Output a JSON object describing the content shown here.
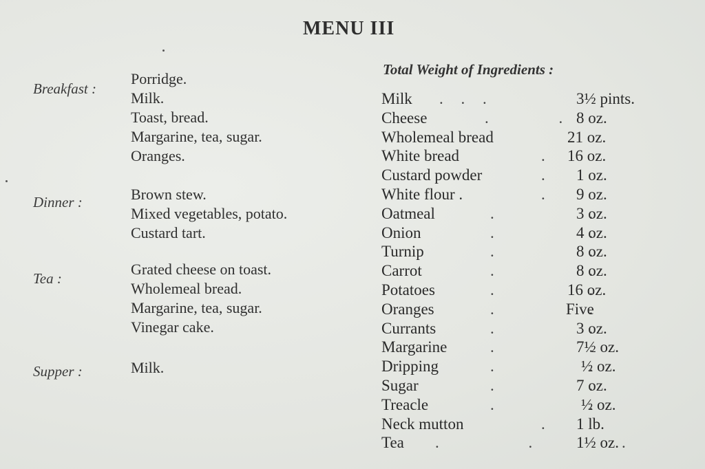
{
  "title": "MENU III",
  "meals": [
    {
      "label": "Breakfast :",
      "items": [
        "Porridge.",
        "Milk.",
        "Toast, bread.",
        "Margarine, tea, sugar.",
        "Oranges."
      ]
    },
    {
      "label": "Dinner :",
      "items": [
        "Brown stew.",
        "Mixed vegetables, potato.",
        "Custard tart."
      ]
    },
    {
      "label": "Tea :",
      "items": [
        "Grated cheese on toast.",
        "Wholemeal bread.",
        "Margarine, tea, sugar.",
        "Vinegar cake."
      ]
    },
    {
      "label": "Supper :",
      "items": [
        "Milk."
      ]
    }
  ],
  "ingredients_heading": "Total Weight of Ingredients :",
  "ingredients": [
    {
      "name": "Milk",
      "leader": ". . .",
      "qty": "3½ pints."
    },
    {
      "name": "Cheese",
      "leader": ". .",
      "qty": "8 oz."
    },
    {
      "name": "Wholemeal bread",
      "leader": "",
      "qty": "21 oz."
    },
    {
      "name": "White bread",
      "leader": ".",
      "qty": "16 oz."
    },
    {
      "name": "Custard powder",
      "leader": ".",
      "qty": "1 oz."
    },
    {
      "name": "White flour .",
      "leader": ".",
      "qty": "9 oz."
    },
    {
      "name": "Oatmeal",
      "leader": ". .",
      "qty": "3 oz."
    },
    {
      "name": "Onion",
      "leader": ". .",
      "qty": "4 oz."
    },
    {
      "name": "Turnip",
      "leader": ". .",
      "qty": "8 oz."
    },
    {
      "name": "Carrot",
      "leader": ". .",
      "qty": "8 oz."
    },
    {
      "name": "Potatoes",
      "leader": ". .",
      "qty": "16 oz."
    },
    {
      "name": "Oranges",
      "leader": ". .",
      "qty": "Five"
    },
    {
      "name": "Currants",
      "leader": ". .",
      "qty": "3 oz."
    },
    {
      "name": "Margarine",
      "leader": ". .",
      "qty": "7½ oz."
    },
    {
      "name": "Dripping",
      "leader": ". .",
      "qty": "½ oz."
    },
    {
      "name": "Sugar",
      "leader": ". .",
      "qty": "7 oz."
    },
    {
      "name": "Treacle",
      "leader": ". .",
      "qty": "½ oz."
    },
    {
      "name": "Neck mutton",
      "leader": ".",
      "qty": "1 lb."
    },
    {
      "name": "Tea",
      "leader": ". . .",
      "qty": "1½ oz."
    }
  ]
}
